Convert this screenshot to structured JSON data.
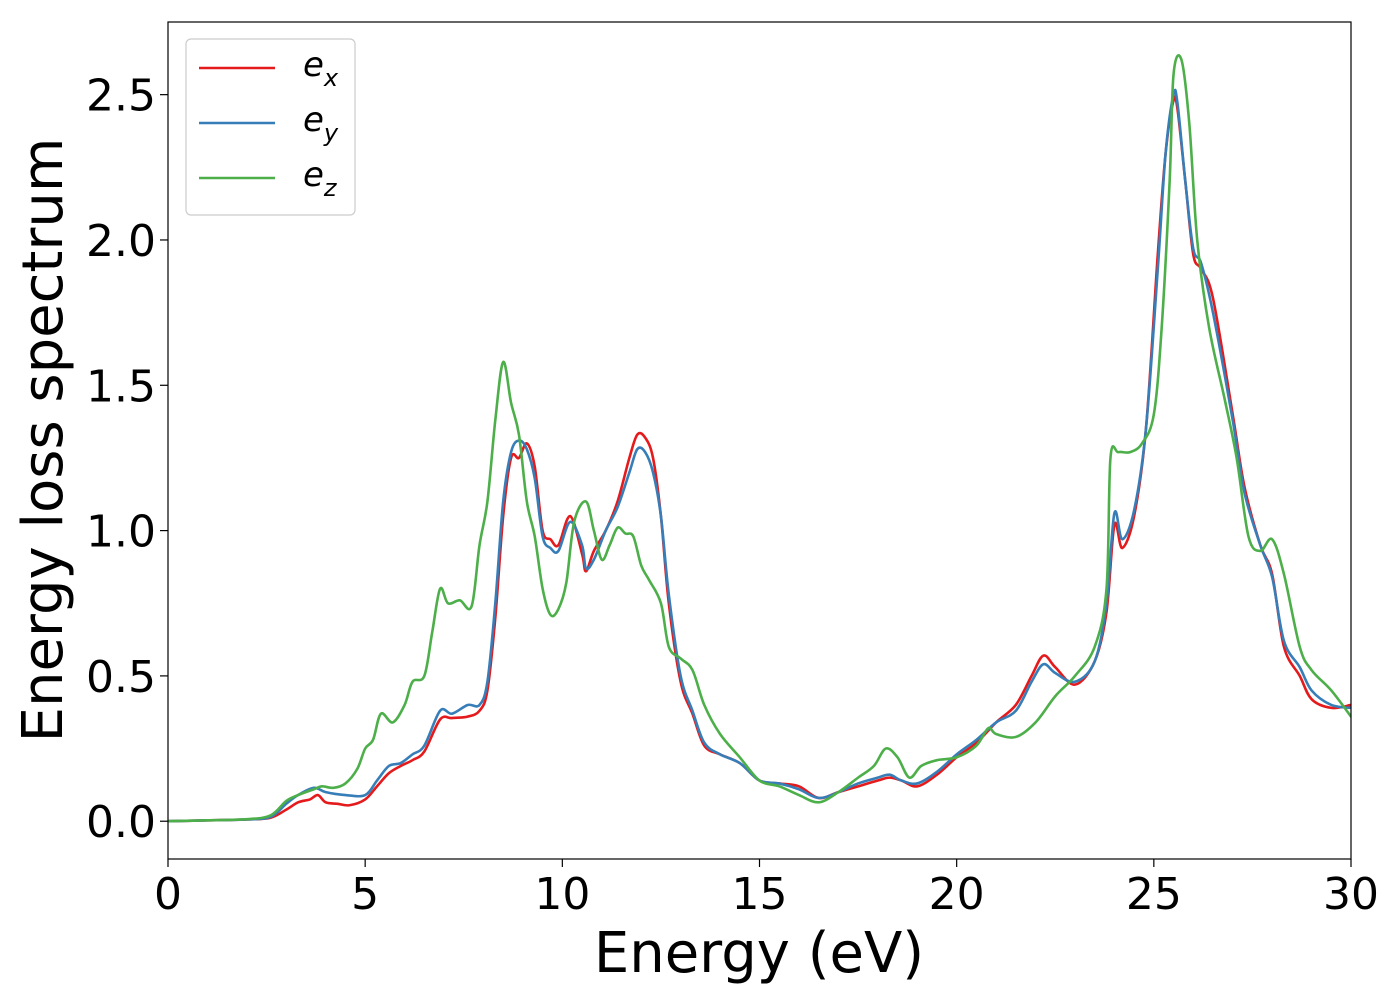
{
  "chart_data": {
    "type": "line",
    "title": "",
    "xlabel": "Energy (eV)",
    "ylabel": "Energy loss spectrum",
    "xlim": [
      0,
      30
    ],
    "ylim": [
      -0.13,
      2.75
    ],
    "xticks": [
      0,
      5,
      10,
      15,
      20,
      25,
      30
    ],
    "xtick_labels": [
      "0",
      "5",
      "10",
      "15",
      "20",
      "25",
      "30"
    ],
    "yticks": [
      0.0,
      0.5,
      1.0,
      1.5,
      2.0,
      2.5
    ],
    "ytick_labels": [
      "0.0",
      "0.5",
      "1.0",
      "1.5",
      "2.0",
      "2.5"
    ],
    "grid": false,
    "legend_position": "top-left",
    "series": [
      {
        "name": "e_x",
        "legend": {
          "base": "e",
          "sub": "x"
        },
        "color": "#e41a1c",
        "x": [
          0,
          1,
          2,
          2.6,
          3,
          3.3,
          3.6,
          3.8,
          4.0,
          4.3,
          4.6,
          5.0,
          5.3,
          5.6,
          5.9,
          6.2,
          6.5,
          6.9,
          7.2,
          7.6,
          7.9,
          8.1,
          8.3,
          8.5,
          8.7,
          8.9,
          9.1,
          9.3,
          9.5,
          9.7,
          9.9,
          10.2,
          10.5,
          10.6,
          10.8,
          11.1,
          11.4,
          11.7,
          11.9,
          12.1,
          12.3,
          12.5,
          12.7,
          13.0,
          13.3,
          13.6,
          14.0,
          14.5,
          15.0,
          15.5,
          16.0,
          16.5,
          17.0,
          17.5,
          18.0,
          18.3,
          18.6,
          19.0,
          19.5,
          20.0,
          20.5,
          21.0,
          21.5,
          21.9,
          22.2,
          22.5,
          23.0,
          23.5,
          23.8,
          24.0,
          24.2,
          24.5,
          24.8,
          25.1,
          25.3,
          25.5,
          25.6,
          25.8,
          26.0,
          26.2,
          26.5,
          27.0,
          27.3,
          27.7,
          28.0,
          28.3,
          28.7,
          29.0,
          29.5,
          30.0
        ],
        "y": [
          0.0,
          0.003,
          0.006,
          0.012,
          0.04,
          0.065,
          0.075,
          0.09,
          0.065,
          0.06,
          0.055,
          0.075,
          0.12,
          0.165,
          0.19,
          0.21,
          0.24,
          0.35,
          0.355,
          0.36,
          0.38,
          0.45,
          0.7,
          1.05,
          1.25,
          1.25,
          1.3,
          1.22,
          1.0,
          0.97,
          0.95,
          1.05,
          0.92,
          0.86,
          0.93,
          1.0,
          1.1,
          1.25,
          1.33,
          1.32,
          1.25,
          1.05,
          0.75,
          0.48,
          0.37,
          0.26,
          0.23,
          0.2,
          0.14,
          0.13,
          0.12,
          0.08,
          0.1,
          0.12,
          0.14,
          0.15,
          0.14,
          0.12,
          0.16,
          0.22,
          0.27,
          0.34,
          0.4,
          0.5,
          0.57,
          0.53,
          0.47,
          0.55,
          0.72,
          1.02,
          0.94,
          1.05,
          1.35,
          1.95,
          2.3,
          2.48,
          2.45,
          2.2,
          1.95,
          1.9,
          1.8,
          1.4,
          1.15,
          0.95,
          0.85,
          0.6,
          0.5,
          0.42,
          0.39,
          0.4
        ]
      },
      {
        "name": "e_y",
        "legend": {
          "base": "e",
          "sub": "y"
        },
        "color": "#377eb8",
        "x": [
          0,
          1,
          2,
          2.6,
          3,
          3.3,
          3.7,
          4.0,
          4.5,
          5.0,
          5.3,
          5.6,
          5.9,
          6.2,
          6.5,
          6.9,
          7.2,
          7.6,
          7.9,
          8.1,
          8.3,
          8.5,
          8.7,
          8.9,
          9.1,
          9.3,
          9.5,
          9.7,
          9.9,
          10.2,
          10.5,
          10.6,
          10.8,
          11.1,
          11.4,
          11.7,
          11.9,
          12.1,
          12.3,
          12.5,
          12.7,
          13.0,
          13.3,
          13.6,
          14.0,
          14.5,
          15.0,
          15.5,
          16.0,
          16.5,
          17.0,
          17.5,
          18.0,
          18.3,
          18.6,
          19.0,
          19.5,
          20.0,
          20.5,
          21.0,
          21.5,
          21.9,
          22.2,
          22.5,
          23.0,
          23.5,
          23.8,
          24.0,
          24.2,
          24.5,
          24.8,
          25.1,
          25.3,
          25.5,
          25.6,
          25.8,
          26.0,
          26.2,
          26.5,
          27.0,
          27.3,
          27.7,
          28.0,
          28.3,
          28.7,
          29.0,
          29.5,
          30.0
        ],
        "y": [
          0.0,
          0.003,
          0.006,
          0.015,
          0.06,
          0.09,
          0.115,
          0.1,
          0.09,
          0.09,
          0.14,
          0.19,
          0.2,
          0.23,
          0.26,
          0.38,
          0.37,
          0.4,
          0.4,
          0.48,
          0.75,
          1.1,
          1.27,
          1.31,
          1.28,
          1.18,
          0.98,
          0.94,
          0.93,
          1.03,
          0.95,
          0.87,
          0.9,
          1.0,
          1.08,
          1.2,
          1.28,
          1.27,
          1.2,
          1.05,
          0.78,
          0.5,
          0.38,
          0.27,
          0.23,
          0.2,
          0.14,
          0.13,
          0.11,
          0.08,
          0.1,
          0.13,
          0.15,
          0.16,
          0.14,
          0.13,
          0.17,
          0.23,
          0.28,
          0.34,
          0.38,
          0.48,
          0.54,
          0.51,
          0.48,
          0.55,
          0.75,
          1.06,
          0.97,
          1.07,
          1.35,
          1.9,
          2.3,
          2.5,
          2.47,
          2.2,
          1.97,
          1.92,
          1.75,
          1.38,
          1.13,
          0.95,
          0.84,
          0.62,
          0.53,
          0.45,
          0.4,
          0.39
        ]
      },
      {
        "name": "e_z",
        "legend": {
          "base": "e",
          "sub": "z"
        },
        "color": "#4daf4a",
        "x": [
          0,
          1,
          2,
          2.6,
          3,
          3.3,
          3.7,
          3.9,
          4.2,
          4.5,
          4.8,
          5.0,
          5.2,
          5.4,
          5.7,
          6.0,
          6.2,
          6.5,
          6.7,
          6.9,
          7.1,
          7.4,
          7.7,
          7.9,
          8.1,
          8.3,
          8.5,
          8.7,
          8.9,
          9.1,
          9.3,
          9.5,
          9.7,
          9.9,
          10.1,
          10.3,
          10.6,
          10.8,
          11.0,
          11.2,
          11.4,
          11.6,
          11.8,
          12.0,
          12.2,
          12.5,
          12.7,
          13.0,
          13.3,
          13.6,
          14.0,
          14.5,
          15.0,
          15.5,
          16.0,
          16.5,
          17.0,
          17.5,
          17.9,
          18.2,
          18.5,
          18.8,
          19.1,
          19.5,
          20.0,
          20.5,
          20.8,
          21.0,
          21.5,
          22.0,
          22.5,
          23.0,
          23.5,
          23.8,
          23.9,
          24.1,
          24.4,
          24.7,
          25.0,
          25.2,
          25.4,
          25.5,
          25.7,
          25.9,
          26.1,
          26.4,
          26.8,
          27.1,
          27.4,
          27.7,
          28.0,
          28.3,
          28.7,
          29.0,
          29.5,
          30.0
        ],
        "y": [
          0.0,
          0.003,
          0.007,
          0.02,
          0.07,
          0.09,
          0.11,
          0.12,
          0.115,
          0.13,
          0.18,
          0.25,
          0.28,
          0.37,
          0.34,
          0.4,
          0.48,
          0.5,
          0.65,
          0.8,
          0.75,
          0.76,
          0.74,
          0.95,
          1.1,
          1.38,
          1.58,
          1.44,
          1.33,
          1.1,
          0.98,
          0.8,
          0.71,
          0.73,
          0.82,
          1.03,
          1.1,
          1.0,
          0.9,
          0.95,
          1.01,
          0.99,
          0.98,
          0.88,
          0.83,
          0.75,
          0.6,
          0.56,
          0.52,
          0.4,
          0.3,
          0.22,
          0.14,
          0.12,
          0.09,
          0.065,
          0.1,
          0.15,
          0.19,
          0.25,
          0.22,
          0.15,
          0.19,
          0.21,
          0.22,
          0.26,
          0.32,
          0.3,
          0.29,
          0.34,
          0.43,
          0.5,
          0.6,
          0.8,
          1.25,
          1.27,
          1.27,
          1.3,
          1.4,
          1.7,
          2.2,
          2.57,
          2.62,
          2.4,
          2.0,
          1.7,
          1.45,
          1.25,
          0.98,
          0.93,
          0.97,
          0.85,
          0.6,
          0.52,
          0.45,
          0.36
        ]
      }
    ]
  }
}
